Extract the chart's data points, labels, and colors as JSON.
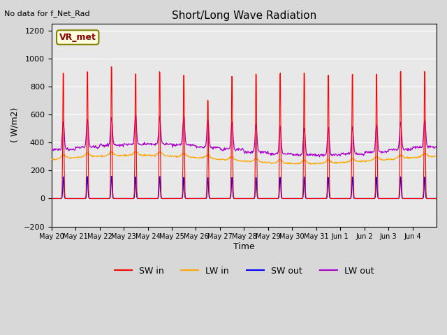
{
  "title": "Short/Long Wave Radiation",
  "ylabel": "( W/m2)",
  "xlabel": "Time",
  "top_left_text": "No data for f_Net_Rad",
  "legend_label_text": "VR_met",
  "ylim": [
    -200,
    1250
  ],
  "yticks": [
    -200,
    0,
    200,
    400,
    600,
    800,
    1000,
    1200
  ],
  "n_days": 16,
  "xtick_labels": [
    "May 20",
    "May 21",
    "May 22",
    "May 23",
    "May 24",
    "May 25",
    "May 26",
    "May 27",
    "May 28",
    "May 29",
    "May 30",
    "May 31",
    "Jun 1",
    "Jun 2",
    "Jun 3",
    "Jun 4"
  ],
  "colors": {
    "SW_in": "#ff0000",
    "LW_in": "#ffa500",
    "SW_out": "#0000ff",
    "LW_out": "#aa00cc",
    "background": "#e8e8e8",
    "grid": "#ffffff"
  },
  "legend_entries": [
    "SW in",
    "LW in",
    "SW out",
    "LW out"
  ]
}
